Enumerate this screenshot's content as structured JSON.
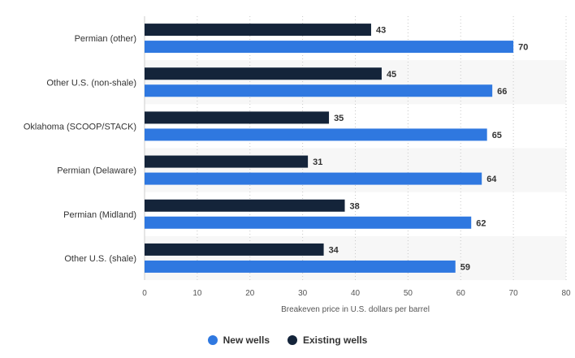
{
  "chart_data": {
    "type": "bar",
    "orientation": "horizontal",
    "categories": [
      "Permian (other)",
      "Other U.S. (non-shale)",
      "Oklahoma (SCOOP/STACK)",
      "Permian (Delaware)",
      "Permian (Midland)",
      "Other U.S. (shale)"
    ],
    "series": [
      {
        "name": "Existing wells",
        "color": "#14243a",
        "values": [
          43,
          45,
          35,
          31,
          38,
          34
        ]
      },
      {
        "name": "New wells",
        "color": "#2f78e0",
        "values": [
          70,
          66,
          65,
          64,
          62,
          59
        ]
      }
    ],
    "xlabel": "Breakeven price in U.S. dollars per barrel",
    "xlim": [
      0,
      80
    ],
    "xticks": [
      "0",
      "10",
      "20",
      "30",
      "40",
      "50",
      "60",
      "70",
      "80"
    ],
    "grid": "vertical dotted",
    "legend": {
      "placement": "bottom-center",
      "items": [
        {
          "label": "New wells",
          "color": "#2f78e0"
        },
        {
          "label": "Existing wells",
          "color": "#14243a"
        }
      ]
    }
  }
}
